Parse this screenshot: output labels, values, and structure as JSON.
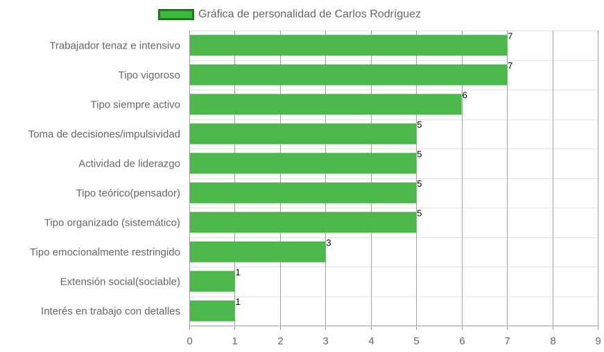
{
  "chart_data": {
    "type": "bar",
    "orientation": "horizontal",
    "categories": [
      "Trabajador tenaz e intensivo",
      "Tipo vigoroso",
      "Tipo siempre activo",
      "Toma de decisiones/impulsividad",
      "Actividad de liderazgo",
      "Tipo teórico(pensador)",
      "Tipo organizado (sistemático)",
      "Tipo emocionalmente restringido",
      "Extensión social(sociable)",
      "Interés en trabajo con detalles"
    ],
    "series": [
      {
        "name": "Gráfica de personalidad de Carlos Rodríguez",
        "values": [
          7,
          7,
          6,
          5,
          5,
          5,
          5,
          3,
          1,
          1
        ]
      }
    ],
    "data_labels": [
      "7",
      "7",
      "6",
      "5",
      "5",
      "5",
      "5",
      "3",
      "1",
      "1"
    ],
    "xlim": [
      0,
      9
    ],
    "xticks": [
      "0",
      "1",
      "2",
      "3",
      "4",
      "5",
      "6",
      "7",
      "8",
      "9"
    ],
    "xlabel": "",
    "ylabel": "",
    "grid": true,
    "legend_position": "top",
    "colors": {
      "bar_fill": "#4cb84c",
      "legend_fill": "#3db83d",
      "legend_border": "#1a7a1a",
      "grid_vertical": "#a0a0a0",
      "grid_horizontal": "#e3e3e3",
      "axis_text": "#666666",
      "data_label_text": "#000000"
    }
  }
}
